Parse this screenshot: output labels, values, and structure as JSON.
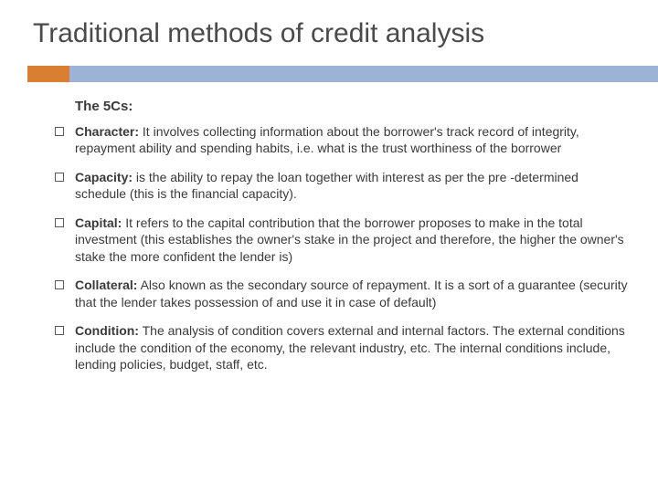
{
  "title": "Traditional methods of credit analysis",
  "subtitle": "The 5Cs:",
  "accent": {
    "orange": "#d97f32",
    "blue": "#9bb3d4"
  },
  "text_color": "#3a3a3a",
  "background_color": "#ffffff",
  "title_fontsize": 30,
  "subtitle_fontsize": 15,
  "body_fontsize": 14,
  "items": [
    {
      "term": "Character:",
      "desc": " It involves collecting information about the borrower's track record of integrity, repayment ability and spending habits, i.e. what is the trust worthiness of the borrower"
    },
    {
      "term": "Capacity:",
      "desc": " is the ability to repay the loan together with interest as per the pre -determined schedule (this is the financial capacity)."
    },
    {
      "term": "Capital:",
      "desc": " It refers to the capital contribution that the borrower proposes to make in the total investment (this establishes the owner's stake in the project and therefore, the higher the owner's stake the more confident the lender is)"
    },
    {
      "term": "Collateral:",
      "desc": " Also known as the secondary source of repayment. It is a sort of a guarantee (security that the lender takes possession of  and use it in case of default)"
    },
    {
      "term": "Condition:",
      "desc": " The analysis of condition covers external and internal factors. The external conditions include the condition of the economy, the relevant industry, etc. The internal conditions include, lending policies, budget, staff, etc."
    }
  ]
}
